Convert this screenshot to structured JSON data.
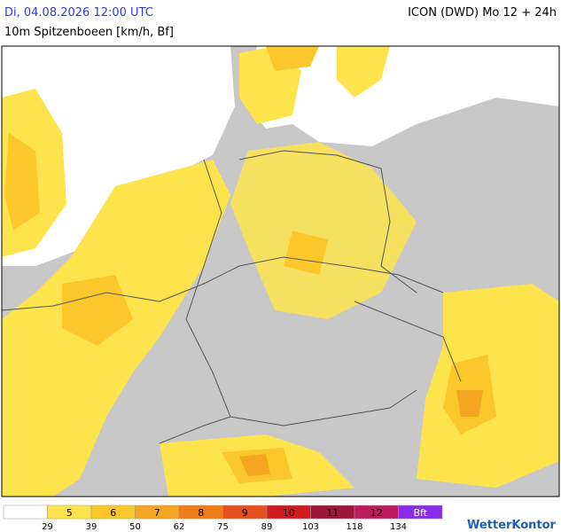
{
  "header": {
    "title": "Di, 04.08.2026 12:00 UTC",
    "model": "ICON (DWD) Mo 12 + 24h",
    "subtitle": "10m Spitzenboeen [km/h, Bf]"
  },
  "legend": {
    "items": [
      {
        "label": null,
        "color": "#ffffff"
      },
      {
        "label": "5",
        "color": "#fde44c"
      },
      {
        "label": "6",
        "color": "#fbc72a"
      },
      {
        "label": "7",
        "color": "#f5a522"
      },
      {
        "label": "8",
        "color": "#f07c16"
      },
      {
        "label": "9",
        "color": "#e64f1e"
      },
      {
        "label": "10",
        "color": "#d01b20"
      },
      {
        "label": "11",
        "color": "#a0153a"
      },
      {
        "label": "12",
        "color": "#be1a5e"
      },
      {
        "label": "Bft",
        "color": "#8a2be8"
      }
    ],
    "thresholds": [
      29,
      39,
      50,
      62,
      75,
      89,
      103,
      118,
      134
    ]
  },
  "logo": "WetterKontor"
}
